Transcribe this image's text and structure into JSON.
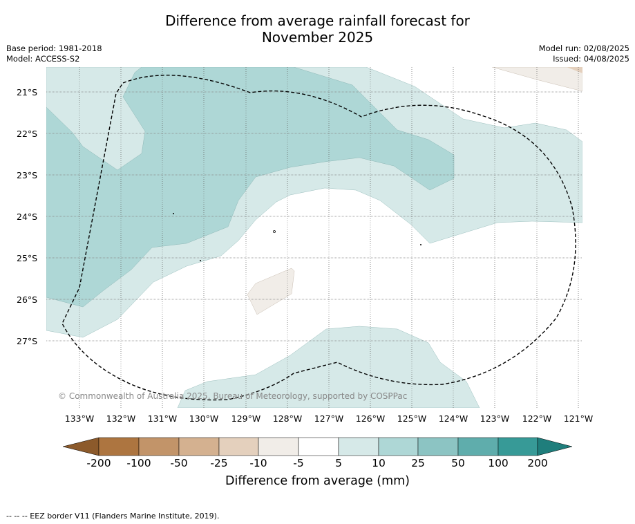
{
  "title_line1": "Difference from average rainfall forecast for",
  "title_line2": "November 2025",
  "meta_left": [
    "Base period: 1981-2018",
    "Model: ACCESS-S2"
  ],
  "meta_right": [
    "Model run: 02/08/2025",
    "Issued: 04/08/2025"
  ],
  "latitude_labels": [
    "21°S",
    "22°S",
    "23°S",
    "24°S",
    "25°S",
    "26°S",
    "27°S"
  ],
  "longitude_labels": [
    "133°W",
    "132°W",
    "131°W",
    "130°W",
    "129°W",
    "128°W",
    "127°W",
    "126°W",
    "125°W",
    "124°W",
    "123°W",
    "122°W",
    "121°W"
  ],
  "copyright": "© Commonwealth of Australia 2025, Bureau of Meteorology, supported by COSPPac",
  "colorbar": {
    "ticks": [
      "-200",
      "-100",
      "-50",
      "-25",
      "-10",
      "-5",
      "5",
      "10",
      "25",
      "50",
      "100",
      "200"
    ],
    "label": "Difference from average (mm)",
    "colors": [
      "#8c5a2b",
      "#ad7540",
      "#c29469",
      "#d4b190",
      "#e4d0bd",
      "#f1ede8",
      "#ffffff",
      "#d6e9e8",
      "#aed7d6",
      "#8cc4c3",
      "#5fadac",
      "#379a97",
      "#1f7e7c"
    ]
  },
  "footer": "-- -- -- EEZ border V11 (Flanders Marine Institute, 2019)."
}
